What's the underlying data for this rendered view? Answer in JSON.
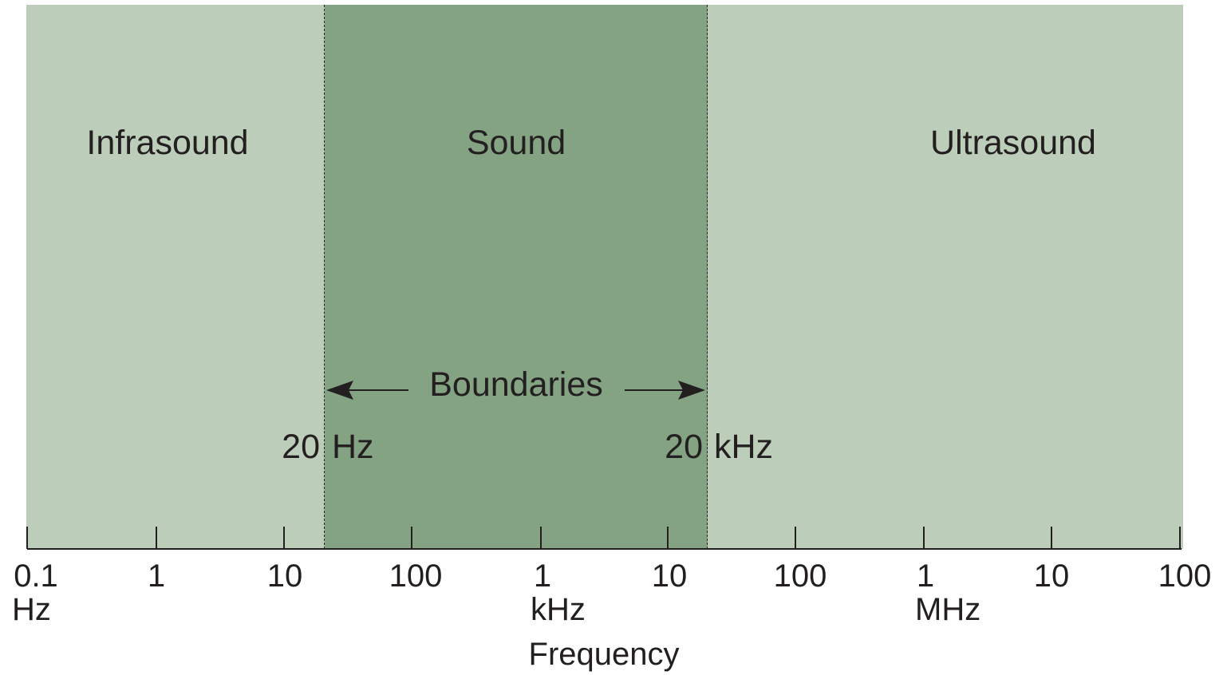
{
  "regions": {
    "infrasound": "Infrasound",
    "sound": "Sound",
    "ultrasound": "Ultrasound"
  },
  "boundaries": {
    "label": "Boundaries",
    "left_value": "20",
    "left_unit": "Hz",
    "right_value": "20",
    "right_unit": "kHz"
  },
  "axis": {
    "ticks": [
      "0.1",
      "1",
      "10",
      "100",
      "1",
      "10",
      "100",
      "1",
      "10",
      "100"
    ],
    "units": {
      "hz": "Hz",
      "khz": "kHz",
      "mhz": "MHz"
    },
    "title": "Frequency"
  },
  "colors": {
    "outer_region": "#bccdb9",
    "sound_region": "#83a383",
    "ink": "#231f20"
  }
}
